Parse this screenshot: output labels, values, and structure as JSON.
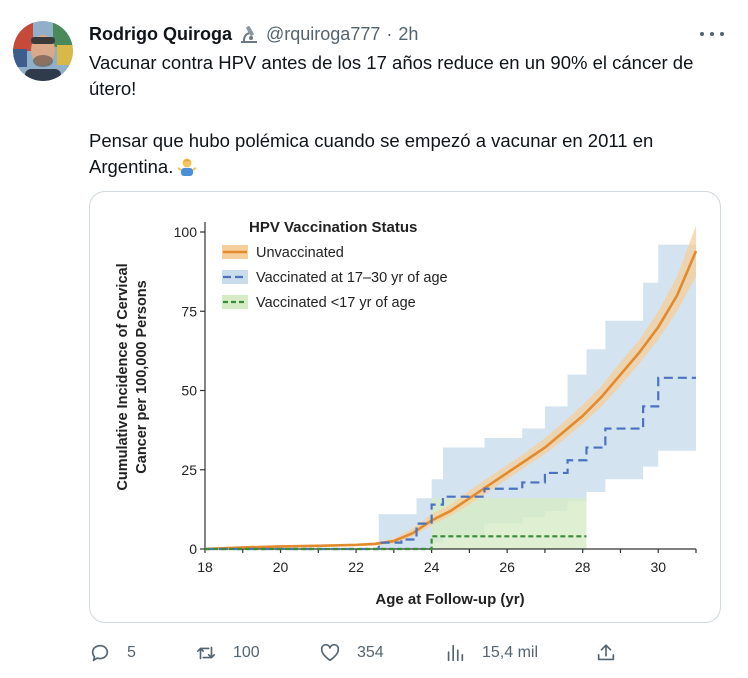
{
  "author": {
    "name": "Rodrigo Quiroga",
    "handle": "@rquiroga777",
    "separator": "·",
    "time": "2h",
    "badge_icon": "microscope-icon",
    "avatar_icon": "avatar-photo"
  },
  "tweet": {
    "line1": "Vacunar contra HPV antes de los 17 años reduce en un 90% el cáncer de útero!",
    "line2": "Pensar que hubo polémica cuando se empezó a vacunar en 2011 en Argentina.",
    "emoji_icon": "shrug-icon"
  },
  "chart_data": {
    "type": "line",
    "title": "",
    "legend_title": "HPV Vaccination Status",
    "legend_placement": "top-left",
    "xlabel": "Age at Follow-up (yr)",
    "ylabel_line1": "Cumulative Incidence of Cervical",
    "ylabel_line2": "Cancer per 100,000 Persons",
    "xlim": [
      18,
      31
    ],
    "ylim": [
      0,
      100
    ],
    "xticks": [
      18,
      20,
      22,
      24,
      26,
      28,
      30
    ],
    "yticks": [
      0,
      25,
      50,
      75,
      100
    ],
    "grid": false,
    "series": [
      {
        "name": "Unvaccinated",
        "style": "solid",
        "color": "#e28a2e",
        "band_color": "#f6cf9c",
        "x": [
          18,
          19,
          20,
          21,
          22,
          22.5,
          23,
          23.5,
          24,
          24.5,
          25,
          25.5,
          26,
          26.5,
          27,
          27.5,
          28,
          28.5,
          29,
          29.5,
          30,
          30.5,
          31
        ],
        "y": [
          0,
          0.5,
          0.8,
          1,
          1.3,
          1.6,
          2.5,
          5,
          9,
          12,
          16,
          20,
          24,
          28,
          32,
          37,
          42,
          48,
          55,
          62,
          70,
          80,
          94
        ],
        "lower": [
          0,
          0.2,
          0.4,
          0.6,
          0.9,
          1.1,
          1.8,
          4,
          7.5,
          10.5,
          14,
          18,
          22,
          26,
          30,
          34.5,
          39.5,
          45,
          51.5,
          58.5,
          66,
          75,
          86
        ],
        "upper": [
          0,
          0.8,
          1.2,
          1.4,
          1.7,
          2.1,
          3.2,
          6.5,
          11,
          14,
          18.5,
          22.5,
          26.5,
          30.5,
          35,
          40,
          45.5,
          51.5,
          59,
          66,
          75,
          86,
          102
        ]
      },
      {
        "name": "Vaccinated at 17–30 yr of age",
        "style": "dashed",
        "color": "#4a72c0",
        "band_color": "#c9dcec",
        "x": [
          18,
          22.6,
          23.2,
          23.6,
          24,
          24.3,
          25.4,
          26.4,
          27,
          27.6,
          28.1,
          28.6,
          29.6,
          30,
          31
        ],
        "y": [
          0,
          2,
          3,
          8,
          14,
          16.5,
          19,
          21,
          24,
          28,
          32,
          38,
          45,
          54,
          54
        ],
        "lower": [
          0,
          0,
          0,
          0,
          2,
          4,
          8,
          10,
          12,
          15,
          18,
          22,
          26,
          31,
          31
        ],
        "upper": [
          0,
          11,
          11,
          16,
          22,
          32,
          35,
          38,
          45,
          55,
          63,
          72,
          84,
          96,
          96
        ]
      },
      {
        "name": "Vaccinated <17 yr of age",
        "style": "dashed",
        "color": "#3a8b3a",
        "band_color": "#d6ecc6",
        "x": [
          18,
          23.7,
          24,
          28.1
        ],
        "y": [
          0,
          0,
          4,
          4
        ],
        "lower": [
          0,
          0,
          0,
          0
        ],
        "upper": [
          0,
          0,
          16,
          16
        ]
      }
    ]
  },
  "actions": {
    "reply": {
      "icon": "reply-icon",
      "count": "5"
    },
    "retweet": {
      "icon": "retweet-icon",
      "count": "100"
    },
    "like": {
      "icon": "heart-icon",
      "count": "354"
    },
    "views": {
      "icon": "views-icon",
      "count": "15,4 mil"
    },
    "share": {
      "icon": "share-icon"
    }
  }
}
